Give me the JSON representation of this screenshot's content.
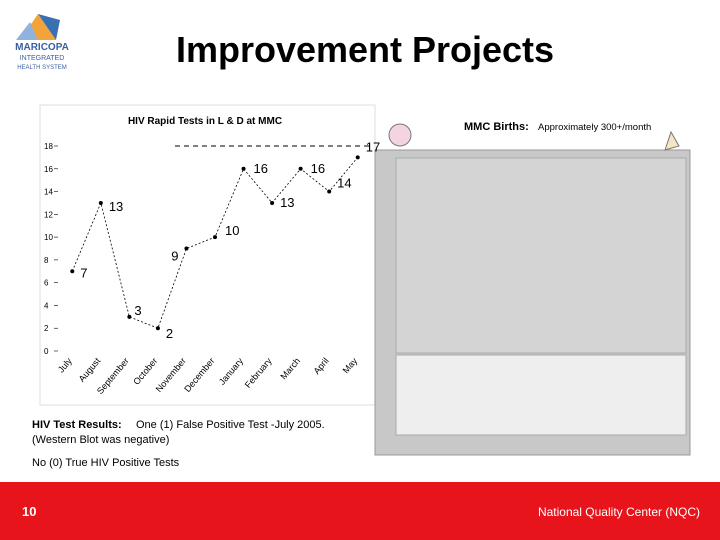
{
  "header": {
    "title": "Improvement Projects",
    "logo_lines": [
      "MARICOPA",
      "INTEGRATED",
      "HEALTH SYSTEM"
    ]
  },
  "chart_data": {
    "type": "line",
    "title": "HIV Rapid Tests in L & D at MMC",
    "categories": [
      "July",
      "August",
      "September",
      "October",
      "November",
      "December",
      "January",
      "February",
      "March",
      "April",
      "May"
    ],
    "values": [
      7,
      13,
      3,
      2,
      9,
      10,
      16,
      13,
      16,
      14,
      17
    ],
    "color": "#000000",
    "ylim": [
      0,
      18
    ],
    "yticks": [
      0,
      2,
      4,
      6,
      8,
      10,
      12,
      14,
      16,
      18
    ],
    "grid": false
  },
  "births_panel": {
    "title": "MMC Births:",
    "subtitle": "Approximately 300+/month"
  },
  "notes": {
    "results_label": "HIV Test Results:",
    "results_text": "One (1) False Positive Test -July 2005.",
    "results_detail": "(Western Blot was negative)",
    "positives": "No (0) True HIV Positive Tests"
  },
  "footer": {
    "page": "10",
    "org": "National Quality Center (NQC)"
  }
}
